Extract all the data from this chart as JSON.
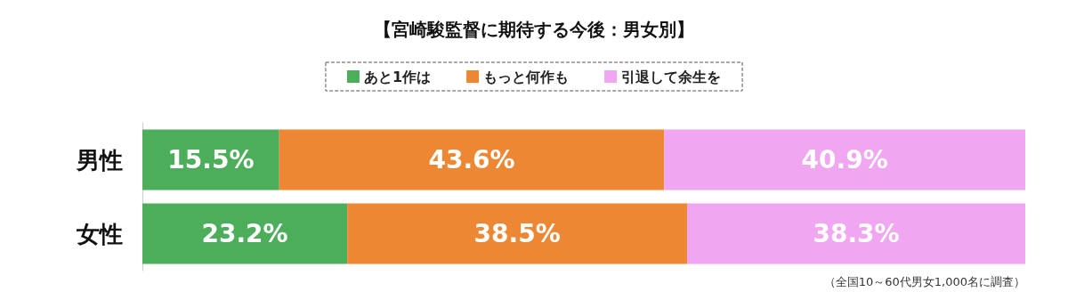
{
  "chart_data": {
    "type": "bar",
    "orientation": "horizontal",
    "stacked": true,
    "title": "【宮崎駿監督に期待する今後：男女別】",
    "categories": [
      "男性",
      "女性"
    ],
    "series": [
      {
        "name": "あと1作は",
        "color": "#4cae5b",
        "values": [
          15.5,
          23.2
        ],
        "value_labels": [
          "15.5%",
          "23.2%"
        ]
      },
      {
        "name": "もっと何作も",
        "color": "#ee8733",
        "values": [
          43.6,
          38.5
        ],
        "value_labels": [
          "43.6%",
          "38.5%"
        ]
      },
      {
        "name": "引退して余生を",
        "color": "#f0a6f0",
        "values": [
          40.9,
          38.3
        ],
        "value_labels": [
          "40.9%",
          "38.3%"
        ]
      }
    ],
    "tick_labels": "y",
    "grid": false,
    "legend": "top",
    "annotations": [
      "（全国10～60代男女1,000名に調査）"
    ]
  }
}
